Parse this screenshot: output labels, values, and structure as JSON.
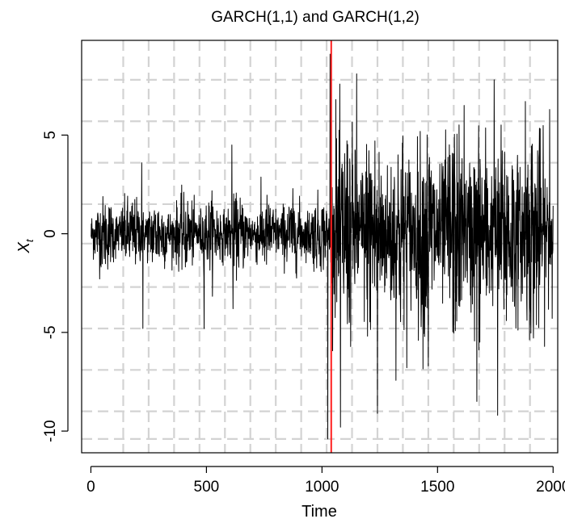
{
  "chart_data": {
    "type": "line",
    "title": "GARCH(1,1) and GARCH(1,2)",
    "xlabel": "Time",
    "ylabel": "X",
    "ylabel_subscript": "t",
    "xlim": [
      -40,
      2020
    ],
    "ylim": [
      -11.1,
      9.8
    ],
    "x_ticks": [
      0,
      500,
      1000,
      1500,
      2000
    ],
    "x_tick_labels": [
      "0",
      "500",
      "1000",
      "1500",
      "2000"
    ],
    "y_ticks": [
      -10,
      -5,
      0,
      5
    ],
    "y_tick_labels": [
      "-10",
      "-5",
      "0",
      "5"
    ],
    "grid": true,
    "grid_x": [
      140,
      250,
      360,
      470,
      580,
      690,
      800,
      910,
      1020,
      1130,
      1240,
      1350,
      1460,
      1570,
      1680,
      1790,
      1900
    ],
    "grid_y": [
      -10.4,
      -9.0,
      -6.9,
      -4.8,
      -2.7,
      -0.5,
      1.5,
      3.6,
      5.7,
      7.8
    ],
    "series": [
      {
        "color": "#000000",
        "x_start": 1,
        "x_end": 2000,
        "n_points": 2000,
        "changepoint": 1040,
        "typical_spread_before": 1.2,
        "typical_spread_after": 3.5,
        "notable_points": [
          [
            220,
            3.6
          ],
          [
            225,
            -4.8
          ],
          [
            490,
            -4.8
          ],
          [
            610,
            4.5
          ],
          [
            615,
            -3.8
          ],
          [
            1025,
            -10.4
          ],
          [
            1035,
            9.1
          ],
          [
            1060,
            6.8
          ],
          [
            1080,
            -9.8
          ],
          [
            1150,
            8.1
          ],
          [
            1240,
            -9.1
          ],
          [
            1460,
            -6.7
          ],
          [
            1615,
            6.5
          ],
          [
            1670,
            -8.5
          ],
          [
            1745,
            7.8
          ],
          [
            1760,
            -9.2
          ],
          [
            1880,
            6.7
          ],
          [
            1985,
            6.3
          ]
        ]
      }
    ],
    "vline": {
      "x": 1040,
      "color": "#ff2020"
    }
  }
}
